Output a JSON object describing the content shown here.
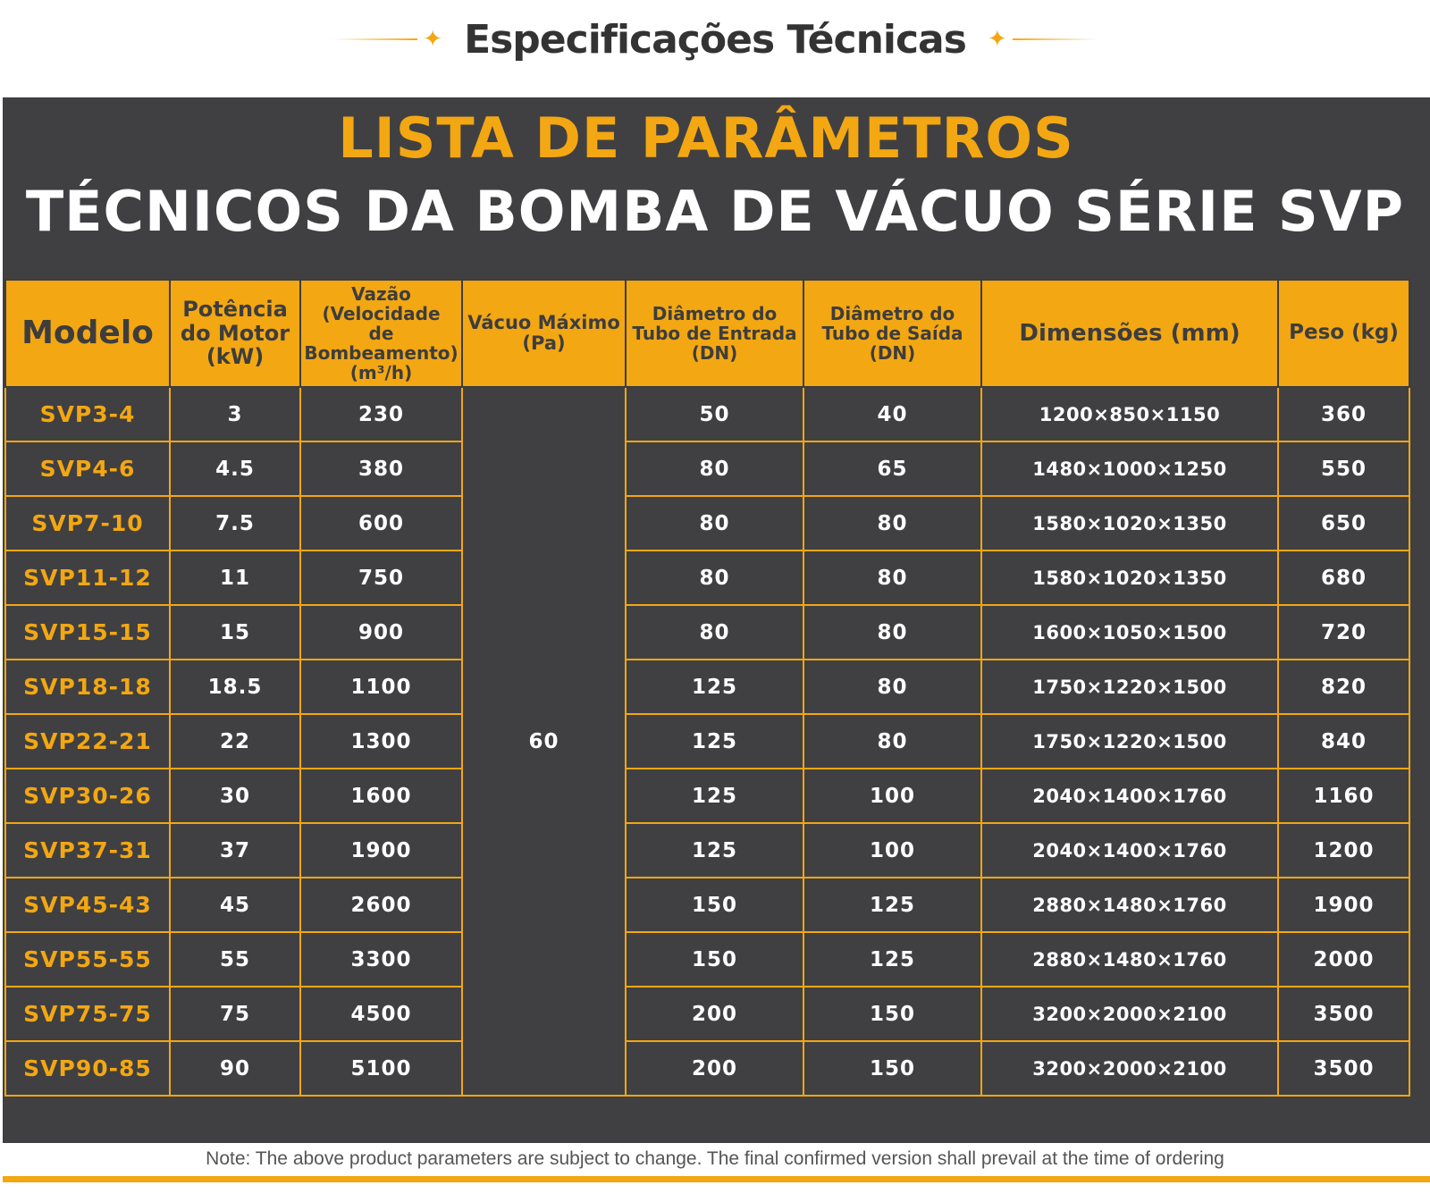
{
  "header": {
    "title": "Especificações Técnicas"
  },
  "title_line1": "LISTA DE PARÂMETROS",
  "title_line2": "TÉCNICOS DA BOMBA DE VÁCUO SÉRIE SVP",
  "columns": {
    "model": "Modelo",
    "power": [
      "Potência",
      "do Motor",
      "(kW)"
    ],
    "flow": [
      "Vazão (Velocidade",
      "de Bombeamento)",
      "(m³/h)"
    ],
    "vacuum": [
      "Vácuo Máximo",
      "(Pa)"
    ],
    "inlet": [
      "Diâmetro do",
      "Tubo de Entrada",
      "(DN)"
    ],
    "outlet": [
      "Diâmetro do",
      "Tubo de Saída",
      "(DN)"
    ],
    "dimensions": "Dimensões (mm)",
    "weight": "Peso (kg)"
  },
  "vacuum_value": "60",
  "rows": [
    {
      "model": "SVP3-4",
      "power": "3",
      "flow": "230",
      "inlet": "50",
      "outlet": "40",
      "dims": "1200×850×1150",
      "weight": "360"
    },
    {
      "model": "SVP4-6",
      "power": "4.5",
      "flow": "380",
      "inlet": "80",
      "outlet": "65",
      "dims": "1480×1000×1250",
      "weight": "550"
    },
    {
      "model": "SVP7-10",
      "power": "7.5",
      "flow": "600",
      "inlet": "80",
      "outlet": "80",
      "dims": "1580×1020×1350",
      "weight": "650"
    },
    {
      "model": "SVP11-12",
      "power": "11",
      "flow": "750",
      "inlet": "80",
      "outlet": "80",
      "dims": "1580×1020×1350",
      "weight": "680"
    },
    {
      "model": "SVP15-15",
      "power": "15",
      "flow": "900",
      "inlet": "80",
      "outlet": "80",
      "dims": "1600×1050×1500",
      "weight": "720"
    },
    {
      "model": "SVP18-18",
      "power": "18.5",
      "flow": "1100",
      "inlet": "125",
      "outlet": "80",
      "dims": "1750×1220×1500",
      "weight": "820"
    },
    {
      "model": "SVP22-21",
      "power": "22",
      "flow": "1300",
      "inlet": "125",
      "outlet": "80",
      "dims": "1750×1220×1500",
      "weight": "840"
    },
    {
      "model": "SVP30-26",
      "power": "30",
      "flow": "1600",
      "inlet": "125",
      "outlet": "100",
      "dims": "2040×1400×1760",
      "weight": "1160"
    },
    {
      "model": "SVP37-31",
      "power": "37",
      "flow": "1900",
      "inlet": "125",
      "outlet": "100",
      "dims": "2040×1400×1760",
      "weight": "1200"
    },
    {
      "model": "SVP45-43",
      "power": "45",
      "flow": "2600",
      "inlet": "150",
      "outlet": "125",
      "dims": "2880×1480×1760",
      "weight": "1900"
    },
    {
      "model": "SVP55-55",
      "power": "55",
      "flow": "3300",
      "inlet": "150",
      "outlet": "125",
      "dims": "2880×1480×1760",
      "weight": "2000"
    },
    {
      "model": "SVP75-75",
      "power": "75",
      "flow": "4500",
      "inlet": "200",
      "outlet": "150",
      "dims": "3200×2000×2100",
      "weight": "3500"
    },
    {
      "model": "SVP90-85",
      "power": "90",
      "flow": "5100",
      "inlet": "200",
      "outlet": "150",
      "dims": "3200×2000×2100",
      "weight": "3500"
    }
  ],
  "note": "Note: The above product parameters are subject to change. The final confirmed version shall prevail at the time of ordering",
  "colors": {
    "accent": "#f3a712",
    "panel": "#404042",
    "header_text": "#333333"
  }
}
